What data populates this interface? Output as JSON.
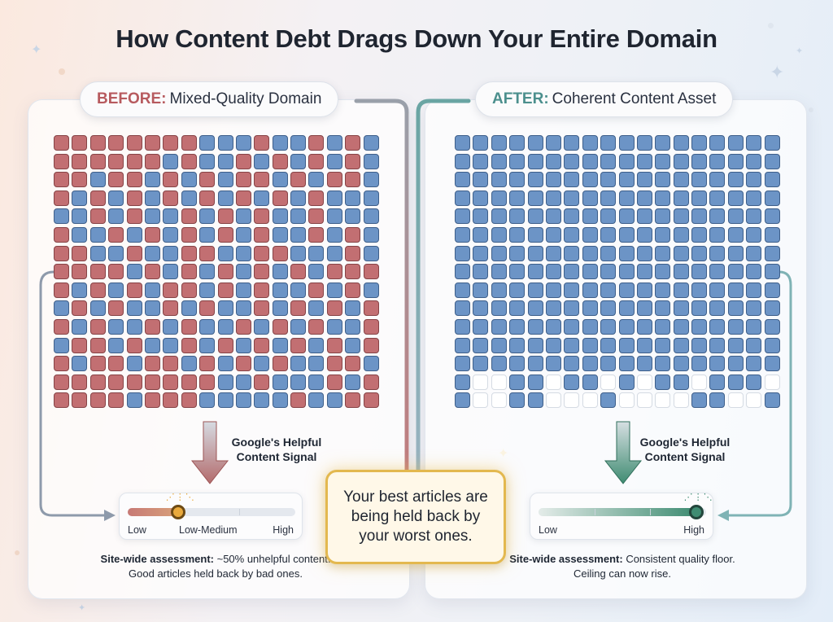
{
  "title": "How Content Debt Drags Down Your Entire Domain",
  "before": {
    "tag": "BEFORE:",
    "label": "Mixed-Quality Domain",
    "grid_rows": [
      "rrrrrrrrbbbrbbrbrb",
      "rrrrrrbrbbrbrbrbrb",
      "rrbrrbrbrbrrbrbrrb",
      "rbrbrbrbrbrbrbrbbb",
      "bbrbrbbrbrbrbbrbbb",
      "rbbrbrbrbrbrbbrbrb",
      "rrbbrbbrrbbrrbbbrb",
      "rrrrbrbrbrbrbrbrrr",
      "rbrbrbrrbrbrbbrbrb",
      "brbrbbrbrbbrbrbrbr",
      "rbrbbrbrbbrbrbrbbr",
      "brrbrbbrbrbrbrbrbr",
      "rbrrbrrbrbrbrbbrrb",
      "rrrrrrrrrbbrbbbrbr",
      "rrrrbrrrbbbbbrbbrr"
    ],
    "signal": [
      "Google's Helpful",
      "Content Signal"
    ],
    "gauge": {
      "value": 0.3,
      "labels": [
        "Low",
        "Low-Medium",
        "High"
      ]
    },
    "assessment_bold": "Site-wide assessment:",
    "assessment_text": " ~50% unhelpful content. Good articles held back by bad ones."
  },
  "after": {
    "tag": "AFTER:",
    "label": "Coherent Content Asset",
    "grid_rows": [
      "bbbbbbbbbbbbbbbbbb",
      "bbbbbbbbbbbbbbbbbb",
      "bbbbbbbbbbbbbbbbbb",
      "bbbbbbbbbbbbbbbbbb",
      "bbbbbbbbbbbbbbbbbb",
      "bbbbbbbbbbbbbbbbbb",
      "bbbbbbbbbbbbbbbbbb",
      "bbbbbbbbbbbbbbbbbb",
      "bbbbbbbbbbbbbbbbbb",
      "bbbbbbbbbbbbbbbbbb",
      "bbbbbbbbbbbbbbbbbb",
      "bbbbbbbbbbbbbbbbbb",
      "bbbbbbbbbbbbbbbbbb",
      "beebbebbebebbebbbe",
      "beebbeeebeeeebbeeb"
    ],
    "signal": [
      "Google's Helpful",
      "Content Signal"
    ],
    "gauge": {
      "value": 0.94,
      "labels": [
        "Low",
        "High"
      ]
    },
    "assessment_bold": "Site-wide assessment:",
    "assessment_text": " Consistent quality floor. Ceiling can now rise."
  },
  "callout": "Your best articles are being held back by your worst ones.",
  "colors": {
    "low_quality": "#c26f72",
    "high_quality": "#6c94c6",
    "removed": "#ffffff",
    "before_accent": "#b75a5e",
    "after_accent": "#4b8f8d",
    "callout_border": "#e3b84f"
  }
}
